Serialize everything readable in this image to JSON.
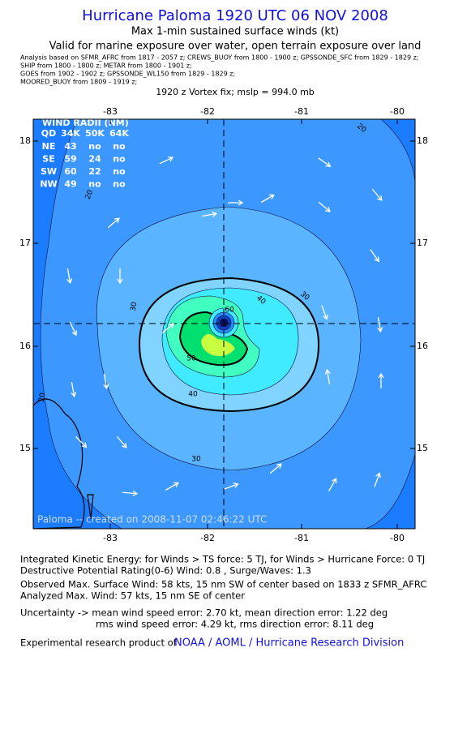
{
  "header": {
    "title": "Hurricane Paloma 1920 UTC 06 NOV 2008",
    "subtitle": "Max 1-min sustained surface winds (kt)",
    "validity": "Valid for marine exposure over water, open terrain exposure over land",
    "analysis_lines": [
      "Analysis based on  SFMR_AFRC from 1817 - 2057 z;  CREWS_BUOY from 1800 - 1900 z;  GPSSONDE_SFC from 1829 - 1829 z;",
      "SHIP from 1800 - 1800 z;  METAR from 1800 - 1901 z;",
      "GOES from 1902 - 1902 z;  GPSSONDE_WL150 from 1829 - 1829 z;",
      "MOORED_BUOY from 1809 - 1919 z;"
    ],
    "vortex_fix": "1920 z Vortex fix; mslp = 994.0 mb"
  },
  "map": {
    "lon_labels": [
      "-83",
      "-82",
      "-81",
      "-80"
    ],
    "lat_labels": [
      "18",
      "17",
      "16",
      "15"
    ],
    "contour_labels": [
      "20",
      "20",
      "20",
      "30",
      "30",
      "30",
      "40",
      "40",
      "50",
      "60"
    ],
    "wind_radii": {
      "title": "WIND RADII (NM)",
      "header": [
        "QD",
        "34K",
        "50K",
        "64K"
      ],
      "rows": [
        [
          "NE",
          "43",
          "no",
          "no"
        ],
        [
          "SE",
          "59",
          "24",
          "no"
        ],
        [
          "SW",
          "60",
          "22",
          "no"
        ],
        [
          "NW",
          "49",
          "no",
          "no"
        ]
      ]
    },
    "credit": "Paloma -- created on 2008-11-07 02:46:22 UTC"
  },
  "footer": {
    "lines": [
      "Integrated Kinetic Energy:  for Winds > TS force: 5 TJ,  for Winds > Hurricane Force: 0 TJ",
      "Destructive Potential Rating(0-6)  Wind: 0.8 , Surge/Waves: 1.3",
      "Observed Max. Surface Wind: 58 kts, 15 nm SW of center based on 1833 z SFMR_AFRC",
      "Analyzed Max. Wind: 57 kts, 15 nm SE of center",
      "Uncertainty -> mean wind speed error: 2.70 kt,   mean direction error: 1.22 deg",
      "rms wind speed error: 4.29 kt,   rms direction error: 8.11 deg"
    ],
    "product_prefix": "Experimental research product of",
    "product_org": "NOAA / AOML / Hurricane Research Division"
  }
}
